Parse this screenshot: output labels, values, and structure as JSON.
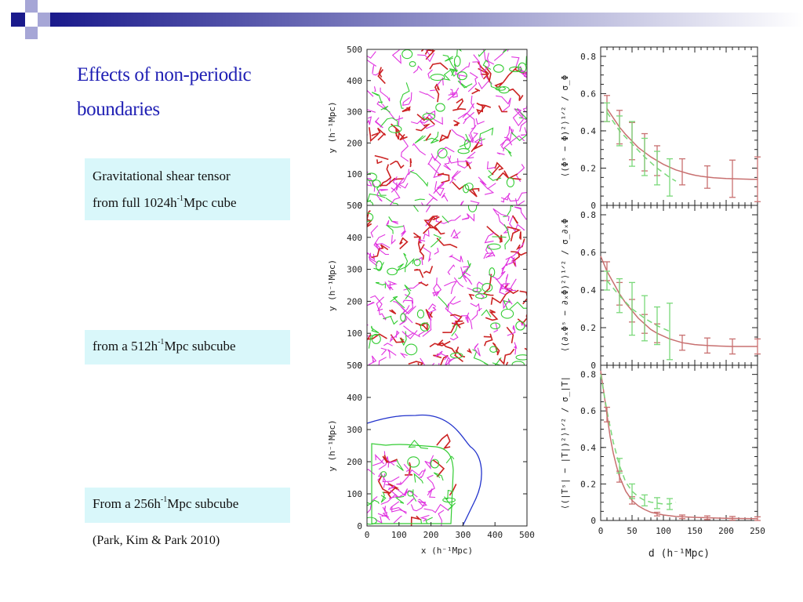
{
  "slide": {
    "title_line1": "Effects of non-periodic",
    "title_line2": "boundaries",
    "boxes": [
      {
        "text_a": "Gravitational shear tensor",
        "text_b": "from full 1024h",
        "sup": "-1",
        "text_c": "Mpc cube"
      },
      {
        "text_a": "",
        "text_b": "from a 512h",
        "sup": "-1",
        "text_c": "Mpc subcube"
      },
      {
        "text_a": "",
        "text_b": "From a 256h",
        "sup": "-1",
        "text_c": "Mpc subcube"
      }
    ],
    "citation": "(Park, Kim & Park 2010)",
    "colors": {
      "title": "#1f1fb4",
      "box_bg": "#d9f7fa",
      "deco_navy": "#1a1a8c",
      "deco_lavender": "#a6a6d6"
    }
  },
  "figure": {
    "contour_axes": {
      "x_ticks": [
        "0",
        "100",
        "200",
        "300",
        "400",
        "500"
      ],
      "y_ticks": [
        "0",
        "100",
        "200",
        "300",
        "400",
        "500"
      ],
      "xlabel": "x (h⁻¹Mpc)",
      "ylabel": "y (h⁻¹Mpc)"
    },
    "contour_colors": {
      "magenta": "#e033e0",
      "red": "#cc2222",
      "green": "#33cc33",
      "blue": "#2233cc"
    }
  },
  "chart_data": [
    {
      "type": "line",
      "ylabel": "⟨(Φˢ − Φ)²⟩¹ᐟ² / σ_Φ",
      "xlim": [
        0,
        250
      ],
      "ylim": [
        0,
        0.85
      ],
      "y_ticks": [
        "0",
        "0.2",
        "0.4",
        "0.6",
        "0.8"
      ],
      "series": [
        {
          "color": "#c87070",
          "style": "solid",
          "x": [
            10,
            20,
            30,
            40,
            50,
            60,
            70,
            80,
            90,
            100,
            110,
            120,
            130,
            140,
            150,
            160,
            170,
            180,
            190,
            200,
            210,
            220,
            230,
            240,
            250
          ],
          "y": [
            0.52,
            0.47,
            0.42,
            0.38,
            0.345,
            0.31,
            0.285,
            0.26,
            0.24,
            0.22,
            0.205,
            0.19,
            0.18,
            0.17,
            0.162,
            0.156,
            0.152,
            0.148,
            0.146,
            0.144,
            0.143,
            0.142,
            0.141,
            0.14,
            0.14
          ]
        },
        {
          "color": "#7ad87a",
          "style": "dashed",
          "x": [
            10,
            30,
            50,
            70,
            90,
            110,
            120
          ],
          "y": [
            0.5,
            0.4,
            0.33,
            0.26,
            0.2,
            0.15,
            0.13
          ]
        }
      ],
      "error_red": [
        {
          "x": 10,
          "y": 0.52,
          "e": 0.07
        },
        {
          "x": 30,
          "y": 0.42,
          "e": 0.09
        },
        {
          "x": 50,
          "y": 0.345,
          "e": 0.1
        },
        {
          "x": 70,
          "y": 0.285,
          "e": 0.1
        },
        {
          "x": 90,
          "y": 0.24,
          "e": 0.08
        },
        {
          "x": 130,
          "y": 0.18,
          "e": 0.07
        },
        {
          "x": 170,
          "y": 0.152,
          "e": 0.06
        },
        {
          "x": 210,
          "y": 0.143,
          "e": 0.1
        },
        {
          "x": 250,
          "y": 0.14,
          "e": 0.12
        }
      ],
      "error_green": [
        {
          "x": 10,
          "y": 0.5,
          "e": 0.05
        },
        {
          "x": 30,
          "y": 0.4,
          "e": 0.08
        },
        {
          "x": 50,
          "y": 0.33,
          "e": 0.12
        },
        {
          "x": 70,
          "y": 0.26,
          "e": 0.1
        },
        {
          "x": 90,
          "y": 0.2,
          "e": 0.09
        },
        {
          "x": 110,
          "y": 0.15,
          "e": 0.1
        }
      ]
    },
    {
      "type": "line",
      "ylabel": "⟨(∂ₓΦˢ − ∂ₓΦ)²⟩¹ᐟ² / σ_∂ₓΦ",
      "xlim": [
        0,
        250
      ],
      "ylim": [
        0,
        0.85
      ],
      "y_ticks": [
        "0",
        "0.2",
        "0.4",
        "0.6",
        "0.8"
      ],
      "series": [
        {
          "color": "#c87070",
          "style": "solid",
          "x": [
            0,
            10,
            20,
            30,
            40,
            50,
            60,
            70,
            80,
            90,
            100,
            110,
            120,
            130,
            140,
            150,
            170,
            190,
            210,
            230,
            250
          ],
          "y": [
            0.58,
            0.5,
            0.44,
            0.38,
            0.33,
            0.29,
            0.25,
            0.22,
            0.19,
            0.17,
            0.155,
            0.14,
            0.13,
            0.12,
            0.115,
            0.11,
            0.105,
            0.102,
            0.1,
            0.1,
            0.1
          ]
        },
        {
          "color": "#7ad87a",
          "style": "dashed",
          "x": [
            10,
            30,
            50,
            70,
            90,
            110
          ],
          "y": [
            0.45,
            0.37,
            0.3,
            0.25,
            0.21,
            0.18
          ]
        }
      ],
      "error_red": [
        {
          "x": 10,
          "y": 0.5,
          "e": 0.05
        },
        {
          "x": 30,
          "y": 0.38,
          "e": 0.06
        },
        {
          "x": 50,
          "y": 0.29,
          "e": 0.06
        },
        {
          "x": 70,
          "y": 0.22,
          "e": 0.05
        },
        {
          "x": 90,
          "y": 0.17,
          "e": 0.05
        },
        {
          "x": 130,
          "y": 0.12,
          "e": 0.04
        },
        {
          "x": 170,
          "y": 0.105,
          "e": 0.04
        },
        {
          "x": 210,
          "y": 0.1,
          "e": 0.04
        },
        {
          "x": 250,
          "y": 0.1,
          "e": 0.04
        }
      ],
      "error_green": [
        {
          "x": 10,
          "y": 0.45,
          "e": 0.05
        },
        {
          "x": 30,
          "y": 0.37,
          "e": 0.09
        },
        {
          "x": 50,
          "y": 0.3,
          "e": 0.14
        },
        {
          "x": 70,
          "y": 0.25,
          "e": 0.12
        },
        {
          "x": 90,
          "y": 0.21,
          "e": 0.1
        },
        {
          "x": 110,
          "y": 0.18,
          "e": 0.15
        }
      ]
    },
    {
      "type": "line",
      "ylabel": "⟨(|Tˢ| − |T|)²⟩¹ᐟ² / σ_|T|",
      "xlabel": "d (h⁻¹Mpc)",
      "xlim": [
        0,
        250
      ],
      "ylim": [
        0,
        0.85
      ],
      "x_ticks": [
        "0",
        "50",
        "100",
        "150",
        "200",
        "250"
      ],
      "y_ticks": [
        "0",
        "0.2",
        "0.4",
        "0.6",
        "0.8"
      ],
      "series": [
        {
          "color": "#c87070",
          "style": "solid",
          "x": [
            0,
            5,
            10,
            15,
            20,
            25,
            30,
            40,
            50,
            60,
            70,
            80,
            100,
            120,
            150,
            200,
            250
          ],
          "y": [
            0.82,
            0.7,
            0.58,
            0.46,
            0.37,
            0.3,
            0.24,
            0.16,
            0.11,
            0.08,
            0.06,
            0.045,
            0.03,
            0.022,
            0.017,
            0.012,
            0.01
          ]
        },
        {
          "color": "#7ad87a",
          "style": "dashed",
          "x": [
            0,
            10,
            20,
            30,
            40,
            50,
            60,
            70,
            80,
            90,
            100,
            110,
            120
          ],
          "y": [
            0.8,
            0.6,
            0.43,
            0.3,
            0.21,
            0.16,
            0.13,
            0.11,
            0.1,
            0.095,
            0.09,
            0.09,
            0.1
          ]
        }
      ],
      "error_red": [
        {
          "x": 10,
          "y": 0.58,
          "e": 0.04
        },
        {
          "x": 30,
          "y": 0.24,
          "e": 0.03
        },
        {
          "x": 50,
          "y": 0.11,
          "e": 0.02
        },
        {
          "x": 90,
          "y": 0.035,
          "e": 0.01
        },
        {
          "x": 130,
          "y": 0.02,
          "e": 0.01
        },
        {
          "x": 170,
          "y": 0.015,
          "e": 0.01
        },
        {
          "x": 210,
          "y": 0.012,
          "e": 0.01
        },
        {
          "x": 250,
          "y": 0.01,
          "e": 0.01
        }
      ],
      "error_green": [
        {
          "x": 30,
          "y": 0.3,
          "e": 0.04
        },
        {
          "x": 50,
          "y": 0.16,
          "e": 0.04
        },
        {
          "x": 70,
          "y": 0.11,
          "e": 0.03
        },
        {
          "x": 90,
          "y": 0.095,
          "e": 0.03
        },
        {
          "x": 110,
          "y": 0.09,
          "e": 0.03
        }
      ]
    }
  ]
}
